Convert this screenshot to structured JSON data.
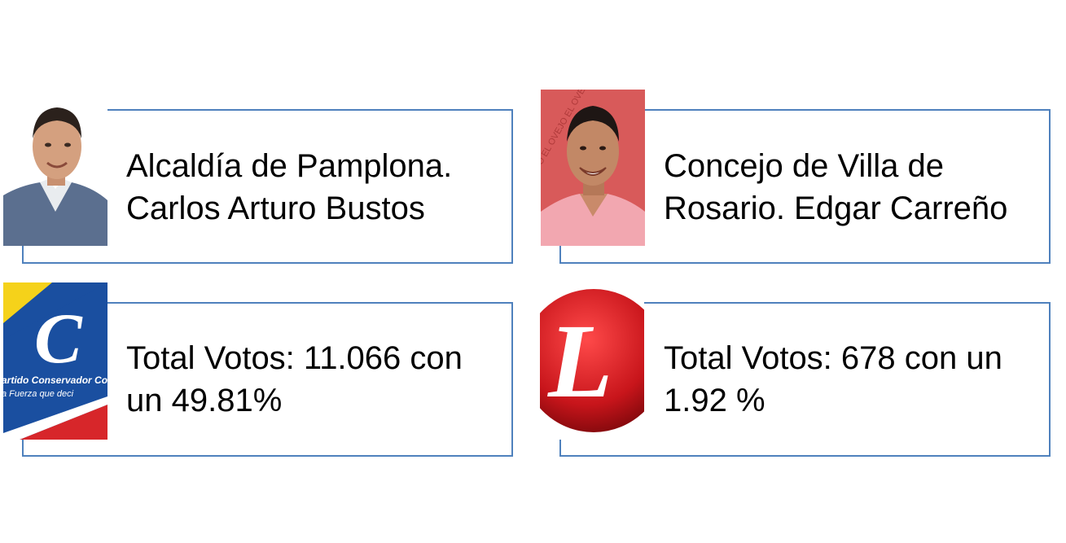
{
  "cards": [
    {
      "line1": "Alcaldía de Pamplona.",
      "line2": "Carlos Arturo Bustos",
      "image": "candidate-portrait-carlos-arturo-bustos"
    },
    {
      "line1": "Concejo de Villa de",
      "line2": "Rosario. Edgar Carreño",
      "image": "candidate-portrait-edgar-carreno"
    },
    {
      "line1": "Total Votos: 11.066 con",
      "line2": "un 49.81%",
      "image": "partido-conservador-logo"
    },
    {
      "line1": "Total Votos: 678 con un",
      "line2": "1.92 %",
      "image": "partido-liberal-logo"
    }
  ],
  "logos": {
    "conservador_name": "artido Conservador Colombia",
    "conservador_slogan": "a Fuerza que deci",
    "conservador_letter": "C",
    "liberal_letter": "L",
    "poster_text": "EL OVEJO EL OVEJO EL OVEJO"
  },
  "colors": {
    "card_border": "#4f81bd",
    "conservador_blue": "#1a4fa0",
    "conservador_yellow": "#f5d21a",
    "conservador_red": "#d7262a",
    "liberal_red": "#c8151b"
  }
}
